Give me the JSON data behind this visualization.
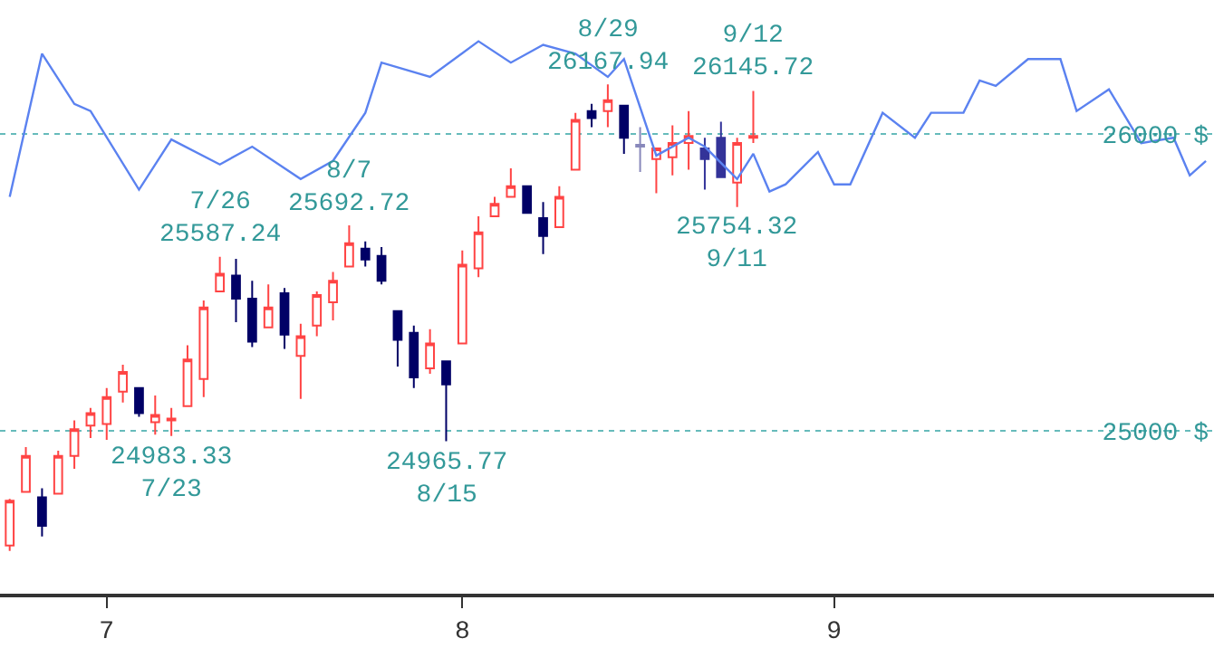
{
  "chart_data": {
    "type": "candlestick",
    "categories": [
      null,
      null,
      null,
      null,
      null,
      null,
      "7",
      null,
      null,
      null,
      null,
      null,
      null,
      null,
      null,
      null,
      null,
      null,
      null,
      null,
      null,
      null,
      null,
      null,
      null,
      null,
      null,
      null,
      "8",
      null,
      null,
      null,
      null,
      null,
      null,
      null,
      null,
      null,
      null,
      null,
      null,
      null,
      null,
      null,
      null,
      null,
      null,
      null,
      null,
      null,
      null,
      "9",
      null,
      null,
      null,
      null,
      null,
      null,
      null,
      null,
      null,
      null,
      null,
      null,
      null,
      null,
      null,
      null,
      null,
      null,
      null,
      null,
      null,
      null,
      null
    ],
    "ohlc": [
      [
        24614,
        24771,
        24596,
        24765
      ],
      [
        24795,
        24946,
        24795,
        24916
      ],
      [
        24777,
        24807,
        24645,
        24681
      ],
      [
        24789,
        24934,
        24789,
        24916
      ],
      [
        24916,
        25036,
        24873,
        25006
      ],
      [
        25018,
        25078,
        24976,
        25060
      ],
      [
        25024,
        25145,
        24970,
        25114
      ],
      [
        25133,
        25223,
        25096,
        25199
      ],
      [
        25145,
        25145,
        25048,
        25060
      ],
      [
        25030,
        25120,
        24988,
        25054
      ],
      [
        25036,
        25078,
        24983.33,
        25042
      ],
      [
        25084,
        25289,
        25084,
        25241
      ],
      [
        25175,
        25440,
        25114,
        25416
      ],
      [
        25470,
        25587.24,
        25470,
        25530
      ],
      [
        25524,
        25580,
        25367,
        25446
      ],
      [
        25446,
        25506,
        25283,
        25301
      ],
      [
        25349,
        25494,
        25349,
        25416
      ],
      [
        25464,
        25482,
        25277,
        25325
      ],
      [
        25253,
        25361,
        25108,
        25319
      ],
      [
        25355,
        25470,
        25319,
        25458
      ],
      [
        25434,
        25536,
        25373,
        25506
      ],
      [
        25554,
        25692.72,
        25554,
        25633
      ],
      [
        25614,
        25639,
        25554,
        25578
      ],
      [
        25590,
        25620,
        25494,
        25506
      ],
      [
        25404,
        25404,
        25217,
        25307
      ],
      [
        25331,
        25355,
        25145,
        25181
      ],
      [
        25211,
        25343,
        25193,
        25295
      ],
      [
        25235,
        25235,
        24965.77,
        25157
      ],
      [
        25295,
        25608,
        25295,
        25560
      ],
      [
        25548,
        25723,
        25518,
        25669
      ],
      [
        25723,
        25789,
        25723,
        25765
      ],
      [
        25789,
        25885,
        25789,
        25825
      ],
      [
        25825,
        25825,
        25735,
        25735
      ],
      [
        25717,
        25771,
        25596,
        25657
      ],
      [
        25687,
        25825,
        25687,
        25789
      ],
      [
        25880,
        26072,
        25880,
        26048
      ],
      [
        26078,
        26102,
        26024,
        26054
      ],
      [
        26078,
        26167.94,
        26024,
        26114
      ],
      [
        26096,
        26096,
        25934,
        25988
      ],
      [
        25964,
        26024,
        25873,
        25958
      ],
      [
        25916,
        25952,
        25801,
        25952
      ],
      [
        25922,
        26030,
        25861,
        25970
      ],
      [
        25970,
        26078,
        25880,
        25994
      ],
      [
        25952,
        25988,
        25813,
        25916
      ],
      [
        25988,
        26042,
        25855,
        25855
      ],
      [
        25837,
        25988,
        25754.32,
        25970
      ],
      [
        25988,
        26145.72,
        25970,
        25994
      ],
      null,
      null,
      null,
      null,
      null,
      null,
      null,
      null,
      null,
      null,
      null,
      null,
      null,
      null,
      null,
      null,
      null,
      null,
      null,
      null,
      null,
      null,
      null,
      null,
      null,
      null,
      null,
      null
    ],
    "colors": [
      "#ff4444",
      "#ff4444",
      "#000066",
      "#ff4444",
      "#ff4444",
      "#ff4444",
      "#ff4444",
      "#ff4444",
      "#000066",
      "#ff4444",
      "#ff4444",
      "#ff4444",
      "#ff4444",
      "#ff4444",
      "#000066",
      "#000066",
      "#ff4444",
      "#000066",
      "#ff4444",
      "#ff4444",
      "#ff4444",
      "#ff4444",
      "#000066",
      "#000066",
      "#000066",
      "#000066",
      "#ff4444",
      "#000066",
      "#ff4444",
      "#ff4444",
      "#ff4444",
      "#ff4444",
      "#000066",
      "#000066",
      "#ff4444",
      "#ff4444",
      "#000066",
      "#ff4444",
      "#000066",
      "#8888bb",
      "#ff4444",
      "#ff4444",
      "#ff4444",
      "#333399",
      "#333399",
      "#ff4444",
      "#ff4444",
      null,
      null,
      null,
      null,
      null,
      null,
      null,
      null,
      null,
      null,
      null,
      null,
      null,
      null,
      null,
      null,
      null,
      null,
      null,
      null,
      null,
      null,
      null,
      null,
      null,
      null,
      null,
      null
    ],
    "series": [
      {
        "type": "line",
        "color": "#5b82f0",
        "values": [
          25789,
          null,
          26271,
          null,
          26102,
          26078,
          null,
          null,
          25813,
          null,
          25982,
          null,
          null,
          25898,
          null,
          25958,
          null,
          null,
          25849,
          null,
          25910,
          null,
          26072,
          26241,
          null,
          null,
          26193,
          null,
          null,
          26313,
          null,
          26241,
          null,
          26301,
          null,
          26271,
          null,
          26193,
          26253,
          null,
          25928,
          null,
          25988,
          25958,
          null,
          25849,
          25934,
          25807,
          25831,
          null,
          25940,
          25831,
          25831,
          null,
          26072,
          null,
          25988,
          26072,
          null,
          26072,
          26181,
          26163,
          null,
          26253,
          null,
          26253,
          26078,
          null,
          26151,
          null,
          25970,
          null,
          25988,
          25861,
          25910
        ]
      }
    ],
    "ylim": [
      24452,
      26452
    ],
    "yticks": [
      {
        "value": 25000,
        "label": "25000 $"
      },
      {
        "value": 26000,
        "label": "26000 $"
      }
    ],
    "grid": "y",
    "annotations": [
      {
        "text": "7/26\n25587.24",
        "y": 25587.24
      },
      {
        "text": "8/7\n25692.72",
        "y": 25692.72
      },
      {
        "text": "8/29\n26167.94",
        "y": 26167.94
      },
      {
        "text": "9/12\n26145.72",
        "y": 26145.72
      },
      {
        "text": "24983.33\n7/23",
        "y": 24983.33
      },
      {
        "text": "24965.77\n8/15",
        "y": 24965.77
      },
      {
        "text": "25754.32\n9/11",
        "y": 25754.32
      }
    ]
  }
}
